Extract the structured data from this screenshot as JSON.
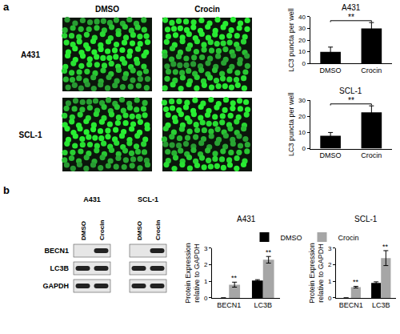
{
  "panels": [
    "a",
    "b"
  ],
  "images": {
    "columns": [
      "DMSO",
      "Crocin"
    ],
    "rows": [
      "A431",
      "SCL-1"
    ]
  },
  "blot": {
    "cell_lines": [
      "A431",
      "SCL-1"
    ],
    "lanes": [
      "DMSO",
      "Crocin"
    ],
    "proteins": [
      {
        "name": "BECN1",
        "bands": [
          false,
          true
        ]
      },
      {
        "name": "LC3B",
        "bands": [
          true,
          true
        ]
      },
      {
        "name": "GAPDH",
        "bands": [
          true,
          true
        ]
      }
    ]
  },
  "chart_data": [
    {
      "type": "bar",
      "title": "A431",
      "ylabel": "LC3 puncta per well",
      "categories": [
        "DMSO",
        "Crocin"
      ],
      "values": [
        10,
        30
      ],
      "errors": [
        4,
        5
      ],
      "color": "#000000",
      "ylim": [
        0,
        40
      ],
      "yticks": [
        0,
        10,
        20,
        30,
        40
      ],
      "grid": false,
      "annotations": [
        {
          "text": "**",
          "between": [
            "DMSO",
            "Crocin"
          ]
        }
      ]
    },
    {
      "type": "bar",
      "title": "SCL-1",
      "ylabel": "LC3 puncta per well",
      "categories": [
        "DMSO",
        "Crocin"
      ],
      "values": [
        8,
        22.5
      ],
      "errors": [
        2,
        4
      ],
      "color": "#000000",
      "ylim": [
        0,
        30
      ],
      "yticks": [
        0,
        10,
        20,
        30
      ],
      "grid": false,
      "annotations": [
        {
          "text": "**",
          "between": [
            "DMSO",
            "Crocin"
          ]
        }
      ]
    },
    {
      "type": "bar",
      "title": "A431",
      "ylabel": [
        "Protein Expression",
        "relative to GAPDH"
      ],
      "categories": [
        "BECN1",
        "LC3B"
      ],
      "series": [
        {
          "name": "DMSO",
          "color": "#000000",
          "values": [
            0,
            1.05
          ],
          "errors": [
            null,
            0.05
          ]
        },
        {
          "name": "Crocin",
          "color": "#a6a6a6",
          "values": [
            0.8,
            2.3
          ],
          "errors": [
            0.15,
            0.2
          ]
        }
      ],
      "ylim": [
        0,
        3
      ],
      "yticks": [
        0,
        1,
        2,
        3
      ],
      "grid": false,
      "legend": "top",
      "annotations": [
        {
          "text": "**",
          "category": "BECN1",
          "series": "Crocin"
        },
        {
          "text": "**",
          "category": "LC3B",
          "series": "Crocin"
        }
      ]
    },
    {
      "type": "bar",
      "title": "SCL-1",
      "ylabel": [
        "Protein Expression",
        "relative to GAPDH"
      ],
      "categories": [
        "BECN1",
        "LC3B"
      ],
      "series": [
        {
          "name": "DMSO",
          "color": "#000000",
          "values": [
            0,
            0.9
          ],
          "errors": [
            null,
            0.07
          ]
        },
        {
          "name": "Crocin",
          "color": "#a6a6a6",
          "values": [
            0.65,
            2.4
          ],
          "errors": [
            0.05,
            0.45
          ]
        }
      ],
      "ylim": [
        0,
        3
      ],
      "yticks": [
        0,
        1,
        2,
        3
      ],
      "grid": false,
      "legend": "top",
      "annotations": [
        {
          "text": "**",
          "category": "BECN1",
          "series": "Crocin"
        },
        {
          "text": "**",
          "category": "LC3B",
          "series": "Crocin"
        }
      ]
    }
  ]
}
